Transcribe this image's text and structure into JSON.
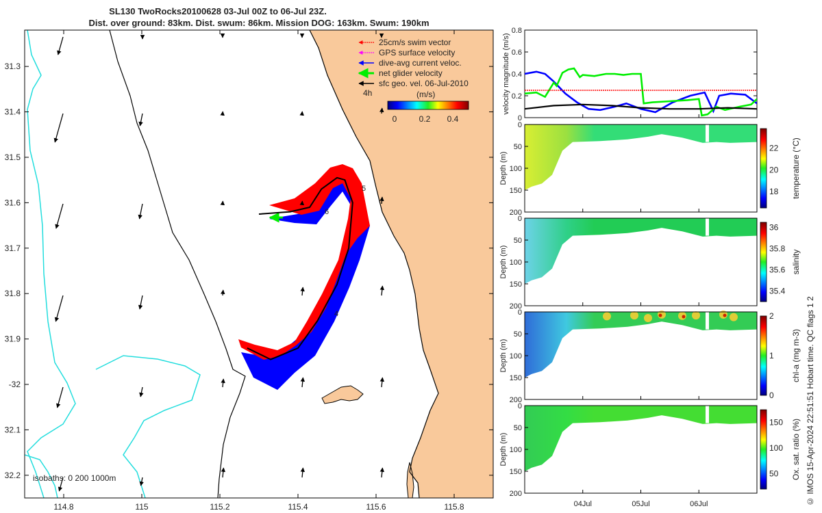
{
  "title_line1": "SL130 TwoRocks20100628 03-Jul 00Z to 06-Jul 23Z.",
  "title_line2": "Dist. over ground: 83km. Dist. swum: 86km. Mission DOG: 163km. Swum: 190km",
  "credit": "© IMOS 15-Apr-2024 22:51:51 Hobart time. QC flags 1  2",
  "colors": {
    "land": "#f9c99b",
    "isobath_shallow": "#000000",
    "isobath_deep": "#22dddd",
    "swim": "#ff0000",
    "gps": "#ff00ff",
    "current": "#0000ff",
    "net": "#00ee00",
    "geo": "#000000"
  },
  "chart_data": [
    {
      "type": "map",
      "name": "glider-track-map",
      "x_range": [
        114.7,
        115.9
      ],
      "y_range": [
        -32.25,
        -31.22
      ],
      "x_ticks": [
        114.8,
        115,
        115.2,
        115.4,
        115.6,
        115.8
      ],
      "x_tick_labels": [
        "114.8",
        "115",
        "115.2",
        "115.4",
        "115.6",
        "115.8"
      ],
      "y_ticks": [
        -31.3,
        -31.4,
        -31.5,
        -31.6,
        -31.7,
        -31.8,
        -31.9,
        -32.0,
        -32.1,
        -32.2
      ],
      "y_tick_labels": [
        "31.3",
        "31.4",
        "31.5",
        "31.6",
        "31.7",
        "31.8",
        "31.9",
        "-32",
        "32.1",
        "32.2"
      ],
      "legend": [
        {
          "label": "25cm/s swim vector",
          "color": "#ff0000"
        },
        {
          "label": "GPS surface velocity",
          "color": "#ff00ff"
        },
        {
          "label": "dive-avg current veloc.",
          "color": "#0000ff"
        },
        {
          "label": "net glider velocity",
          "color": "#00ee00"
        },
        {
          "label": "sfc geo. vel. 06-Jul-2010",
          "color": "#000000"
        }
      ],
      "colorbar": {
        "label": "(m/s)",
        "ticks": [
          "0",
          "0.2",
          "0.4"
        ],
        "range": [
          0,
          0.5
        ]
      },
      "time_label": "4h",
      "track_labels": [
        "5",
        "6",
        "4"
      ],
      "isobath_label": "isobaths: 0   200  1000m",
      "track": [
        [
          115.3,
          -31.625
        ],
        [
          115.38,
          -31.62
        ],
        [
          115.43,
          -31.61
        ],
        [
          115.46,
          -31.57
        ],
        [
          115.5,
          -31.545
        ],
        [
          115.52,
          -31.55
        ],
        [
          115.54,
          -31.6
        ],
        [
          115.53,
          -31.7
        ],
        [
          115.5,
          -31.78
        ],
        [
          115.45,
          -31.86
        ],
        [
          115.4,
          -31.92
        ],
        [
          115.33,
          -31.945
        ],
        [
          115.27,
          -31.92
        ]
      ]
    },
    {
      "type": "line",
      "name": "velocity-magnitude",
      "ylabel": "velocity magnitude (m/s)",
      "ylim": [
        0,
        0.8
      ],
      "y_ticks": [
        "0",
        "0.2",
        "0.4",
        "0.6",
        "0.8"
      ],
      "x_range": [
        3.0,
        7.0
      ],
      "series": [
        {
          "name": "dive-avg current",
          "color": "#0000ff",
          "x": [
            3.0,
            3.2,
            3.35,
            3.5,
            3.7,
            3.9,
            4.1,
            4.3,
            4.55,
            4.75,
            5.0,
            5.25,
            5.55,
            5.85,
            6.1,
            6.25,
            6.35,
            6.55,
            6.8,
            7.0
          ],
          "y": [
            0.4,
            0.42,
            0.4,
            0.33,
            0.22,
            0.14,
            0.08,
            0.07,
            0.1,
            0.13,
            0.08,
            0.05,
            0.14,
            0.2,
            0.23,
            0.06,
            0.2,
            0.22,
            0.21,
            0.13
          ]
        },
        {
          "name": "net glider velocity",
          "color": "#00ee00",
          "x": [
            3.0,
            3.2,
            3.35,
            3.5,
            3.55,
            3.65,
            3.75,
            3.85,
            3.95,
            4.0,
            4.2,
            4.4,
            4.55,
            4.7,
            4.85,
            5.0,
            5.05,
            5.2,
            5.5,
            5.8,
            6.0,
            6.05,
            6.15,
            6.3,
            6.45,
            6.7,
            6.9,
            7.0
          ],
          "y": [
            0.22,
            0.23,
            0.19,
            0.32,
            0.29,
            0.41,
            0.44,
            0.45,
            0.37,
            0.39,
            0.38,
            0.4,
            0.4,
            0.39,
            0.4,
            0.4,
            0.13,
            0.14,
            0.15,
            0.16,
            0.17,
            0.02,
            0.03,
            0.1,
            0.07,
            0.1,
            0.12,
            0.17
          ]
        },
        {
          "name": "swim speed",
          "color": "#ff0000",
          "x": [
            3.0,
            7.0
          ],
          "y": [
            0.25,
            0.25
          ]
        },
        {
          "name": "sfc geo. vel.",
          "color": "#000000",
          "x": [
            3.0,
            3.5,
            4.0,
            4.5,
            5.0,
            5.5,
            6.0,
            6.5,
            7.0
          ],
          "y": [
            0.08,
            0.11,
            0.12,
            0.11,
            0.09,
            0.08,
            0.08,
            0.09,
            0.08
          ]
        }
      ]
    },
    {
      "type": "heatmap",
      "name": "temperature-section",
      "ylabel": "Depth (m)",
      "clabel": "temperature (°C)",
      "c_ticks": [
        "18",
        "20",
        "22"
      ],
      "c_range": [
        16.5,
        23.8
      ],
      "y_ticks": [
        "0",
        "50",
        "100",
        "150",
        "200"
      ]
    },
    {
      "type": "heatmap",
      "name": "salinity-section",
      "ylabel": "Depth (m)",
      "clabel": "salinity",
      "c_ticks": [
        "35.4",
        "35.6",
        "35.8",
        "36"
      ],
      "c_range": [
        35.3,
        36.05
      ],
      "y_ticks": [
        "0",
        "50",
        "100",
        "150",
        "200"
      ]
    },
    {
      "type": "heatmap",
      "name": "chla-section",
      "ylabel": "Depth (m)",
      "clabel": "chl-a (mg m-3)",
      "c_ticks": [
        "0",
        "1",
        "2"
      ],
      "c_range": [
        0,
        2
      ],
      "y_ticks": [
        "0",
        "50",
        "100",
        "150",
        "200"
      ]
    },
    {
      "type": "heatmap",
      "name": "oxygen-section",
      "ylabel": "Depth (m)",
      "clabel": "Ox. sat. ratio (%)",
      "c_ticks": [
        "50",
        "100",
        "150"
      ],
      "c_range": [
        20,
        175
      ],
      "y_ticks": [
        "0",
        "50",
        "100",
        "150",
        "200"
      ],
      "x_ticks": [
        "04Jul",
        "05Jul",
        "06Jul"
      ]
    }
  ]
}
